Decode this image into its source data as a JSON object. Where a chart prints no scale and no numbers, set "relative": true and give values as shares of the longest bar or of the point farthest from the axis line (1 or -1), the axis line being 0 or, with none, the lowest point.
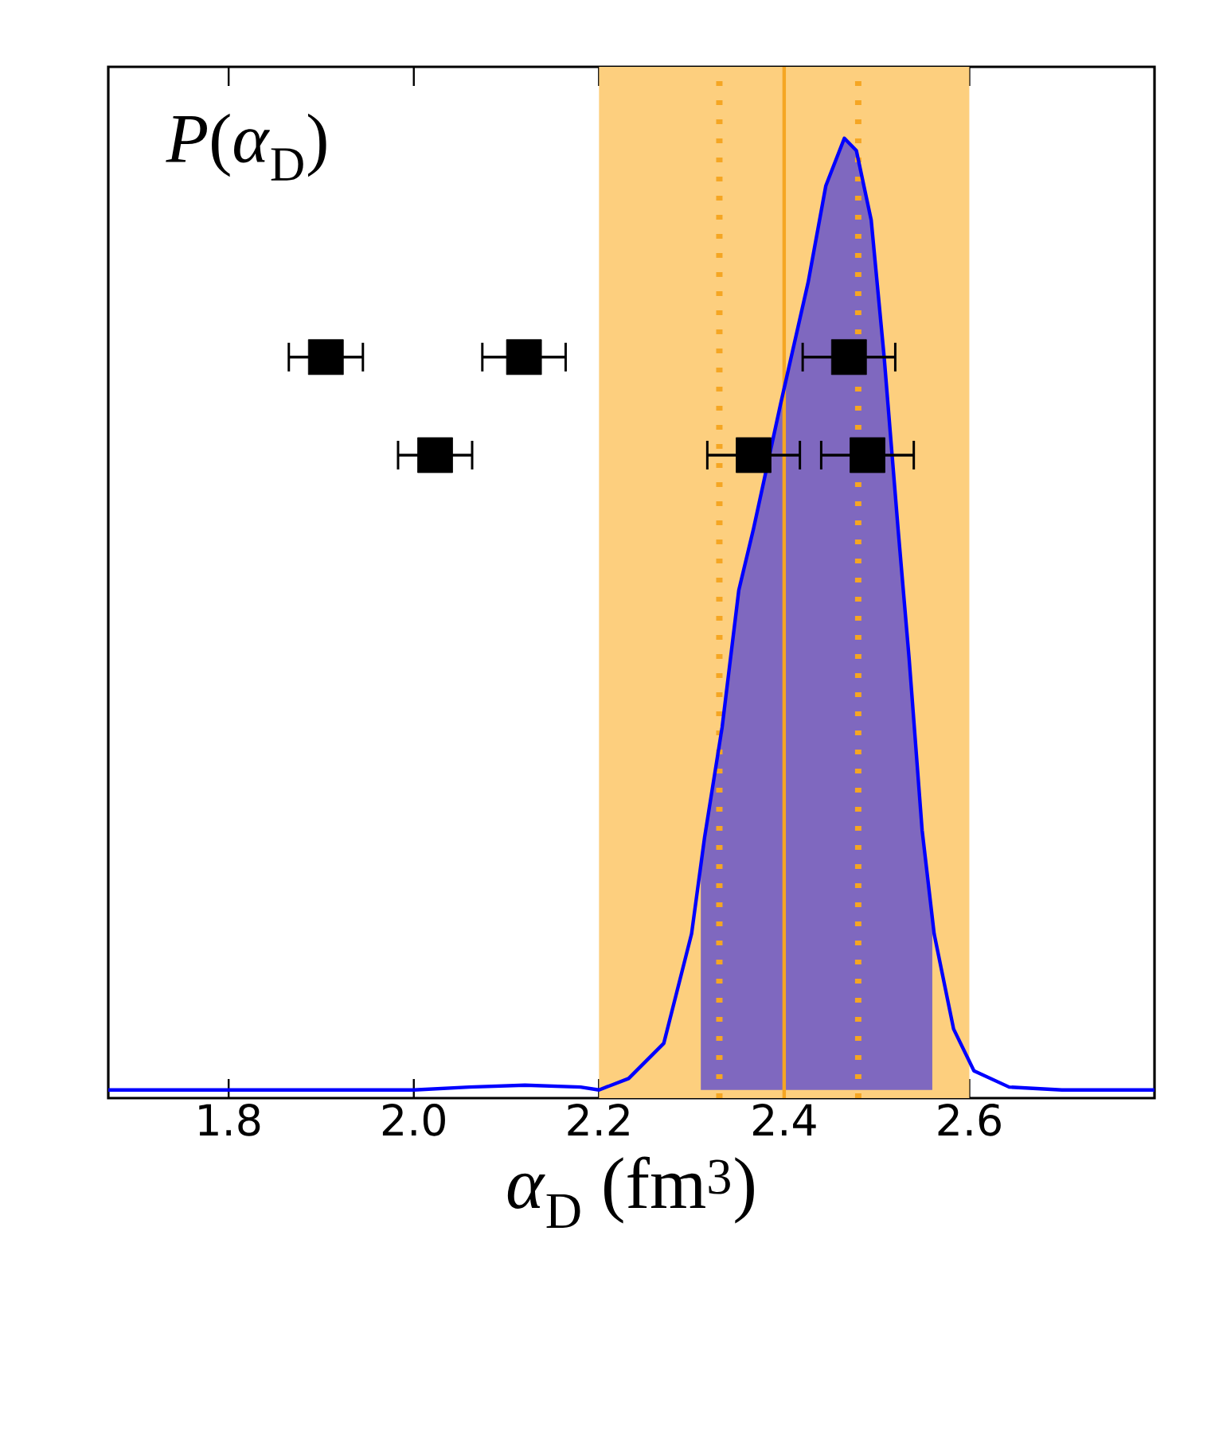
{
  "chart_data": {
    "type": "line",
    "relative": true,
    "xlabel": "*α*$_{D}$ (fm$^{3}$)",
    "annotations": [
      "*P*(*α*$_{D}$)"
    ],
    "xlim": [
      1.67,
      2.8
    ],
    "xticks": [
      1.8,
      {
        "value": 2.0,
        "label": "2.0"
      },
      2.2,
      2.4,
      2.6
    ],
    "tick_labels": "x",
    "bands": [
      {
        "axis": "x",
        "from": 2.2,
        "to": 2.6,
        "color": "#fdcf7e"
      }
    ],
    "ref_lines": [
      {
        "axis": "x",
        "value": 2.4,
        "color": "#f5a623",
        "line_style": "solid"
      },
      {
        "axis": "x",
        "value": 2.33,
        "color": "#f5a623",
        "line_style": "dotted"
      },
      {
        "axis": "x",
        "value": 2.48,
        "color": "#f5a623",
        "line_style": "dotted"
      }
    ],
    "series": [
      {
        "type": "area",
        "color": "#7f68bf",
        "x": [
          2.31,
          2.314,
          2.333,
          2.351,
          2.367,
          2.396,
          2.426,
          2.445,
          2.465,
          2.478,
          2.494,
          2.508,
          2.523,
          2.535,
          2.549,
          2.56
        ],
        "values": [
          0.24,
          0.265,
          0.381,
          0.525,
          0.59,
          0.72,
          0.849,
          0.95,
          1.0,
          0.987,
          0.914,
          0.77,
          0.59,
          0.453,
          0.273,
          0.18
        ]
      },
      {
        "color": "#0000ff",
        "x": [
          1.67,
          1.9,
          2.0,
          2.06,
          2.12,
          2.18,
          2.2,
          2.232,
          2.27,
          2.3,
          2.314,
          2.333,
          2.351,
          2.367,
          2.396,
          2.426,
          2.445,
          2.465,
          2.478,
          2.494,
          2.508,
          2.523,
          2.535,
          2.549,
          2.562,
          2.583,
          2.605,
          2.643,
          2.7,
          2.8
        ],
        "values": [
          0,
          0,
          0,
          0.003,
          0.005,
          0.003,
          0,
          0.012,
          0.049,
          0.164,
          0.265,
          0.381,
          0.525,
          0.59,
          0.72,
          0.849,
          0.95,
          1.0,
          0.987,
          0.914,
          0.77,
          0.59,
          0.453,
          0.273,
          0.164,
          0.064,
          0.02,
          0.003,
          0,
          0
        ]
      },
      {
        "type": "scatter",
        "color": "#000000",
        "marker": "square",
        "x": [
          1.905,
          2.119,
          2.47,
          2.023,
          2.367,
          2.49
        ],
        "values": [
          0.77,
          0.77,
          0.77,
          0.667,
          0.667,
          0.667
        ],
        "xerrors": [
          0.04,
          0.045,
          0.05,
          0.04,
          0.05,
          0.05
        ]
      }
    ]
  }
}
